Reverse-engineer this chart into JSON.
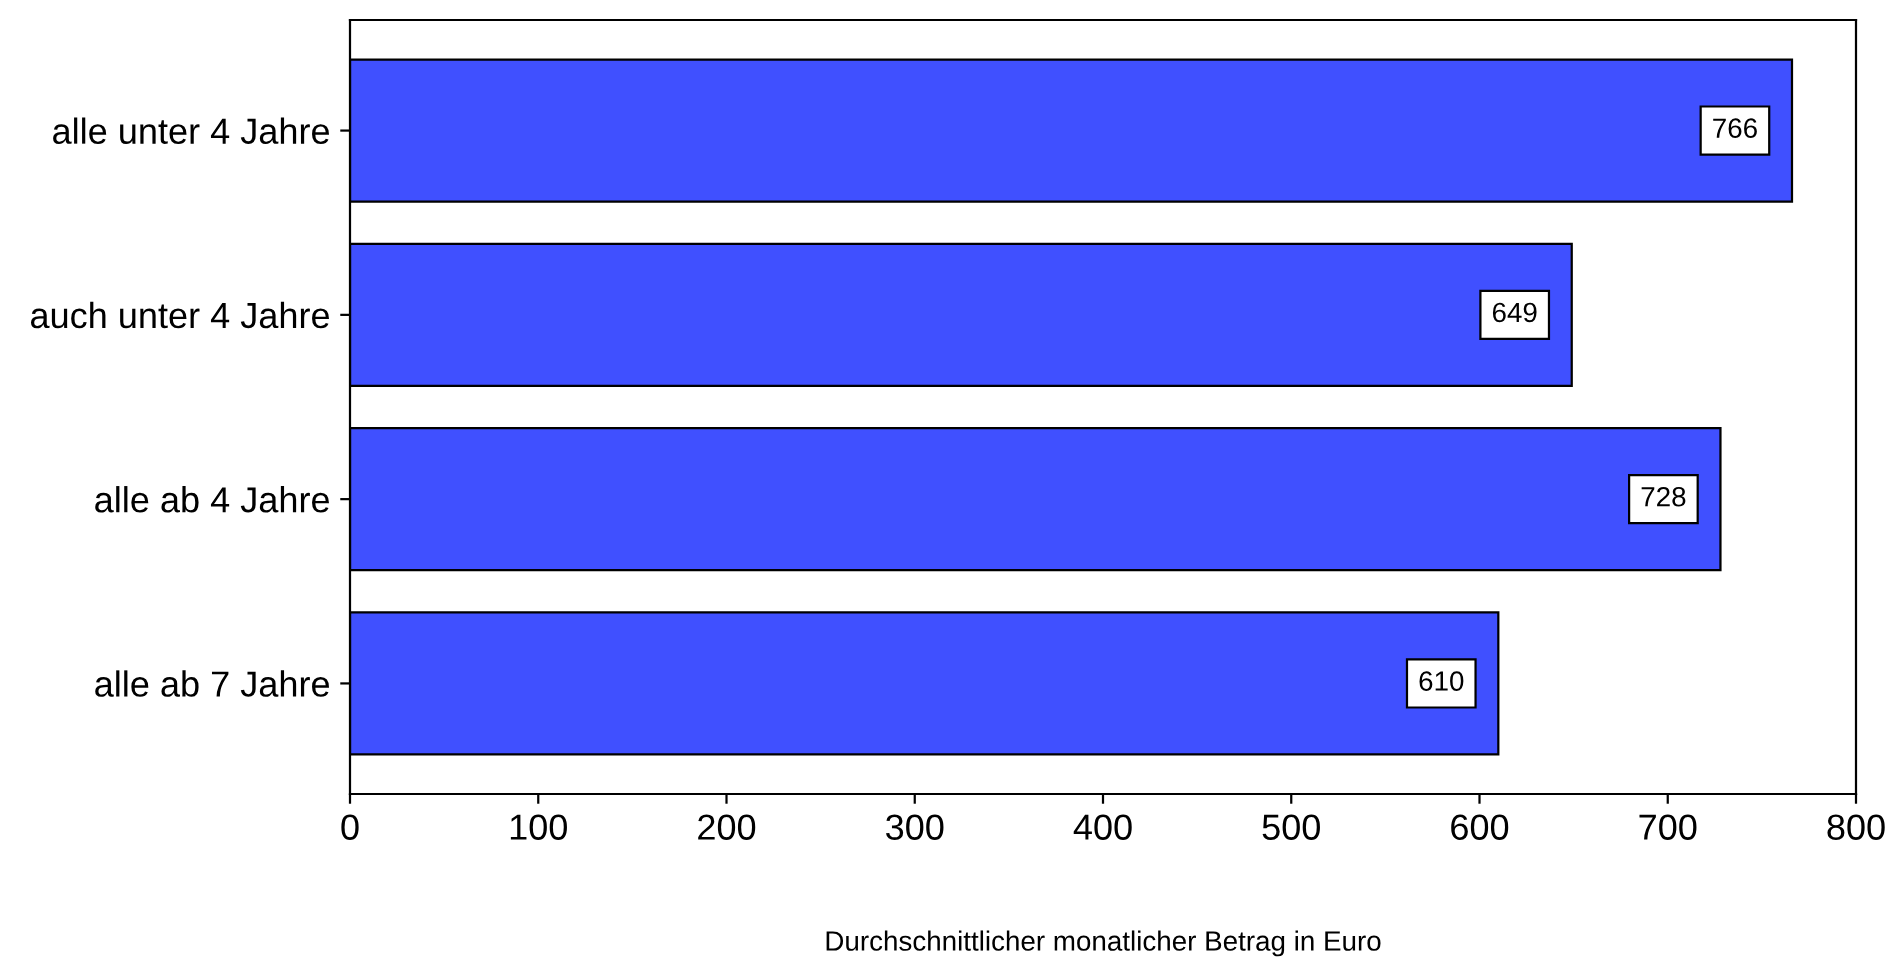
{
  "chart_data": {
    "type": "bar",
    "orientation": "horizontal",
    "categories": [
      "alle unter 4 Jahre",
      "auch unter 4 Jahre",
      "alle ab 4 Jahre",
      "alle ab 7 Jahre"
    ],
    "values": [
      766,
      649,
      728,
      610
    ],
    "color": "#4050ff",
    "xlim": [
      0,
      800
    ],
    "xticks": [
      0,
      100,
      200,
      300,
      400,
      500,
      600,
      700,
      800
    ],
    "xlabel": "Durchschnittlicher monatlicher Betrag in Euro",
    "data_labels": true,
    "grid": false
  }
}
